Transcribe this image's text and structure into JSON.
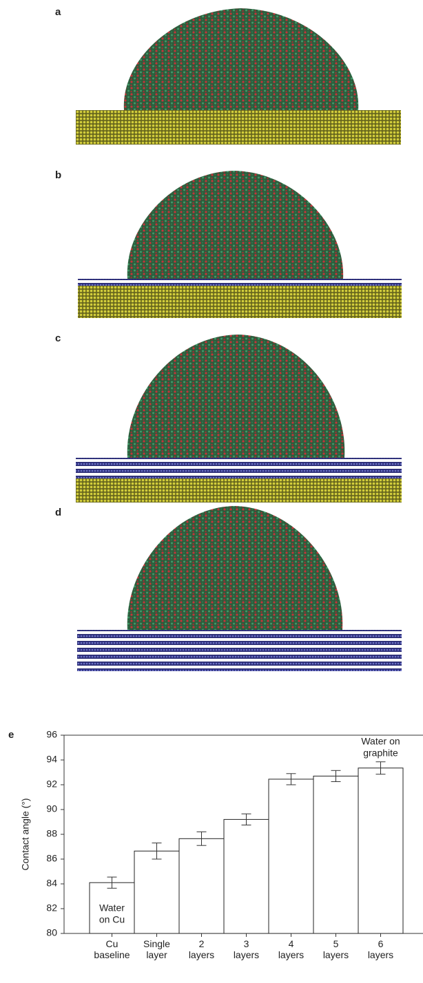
{
  "panel_labels": [
    "a",
    "b",
    "c",
    "d",
    "e"
  ],
  "chart_data": {
    "type": "bar",
    "categories": [
      "Cu baseline",
      "Single layer",
      "2 layers",
      "3 layers",
      "4 layers",
      "5 layers",
      "6 layers"
    ],
    "values": [
      84.1,
      86.65,
      87.65,
      89.2,
      92.45,
      92.7,
      93.35
    ],
    "errors": [
      0.45,
      0.65,
      0.55,
      0.45,
      0.45,
      0.45,
      0.5
    ],
    "color": "#ffffff",
    "y_label": "Contact angle (°)",
    "ylim": [
      80,
      96
    ],
    "yticks": [
      80,
      82,
      84,
      86,
      88,
      90,
      92,
      94,
      96
    ],
    "annotations": [
      [
        "Water",
        "on Cu"
      ],
      [
        "Water on",
        "graphite"
      ]
    ]
  }
}
